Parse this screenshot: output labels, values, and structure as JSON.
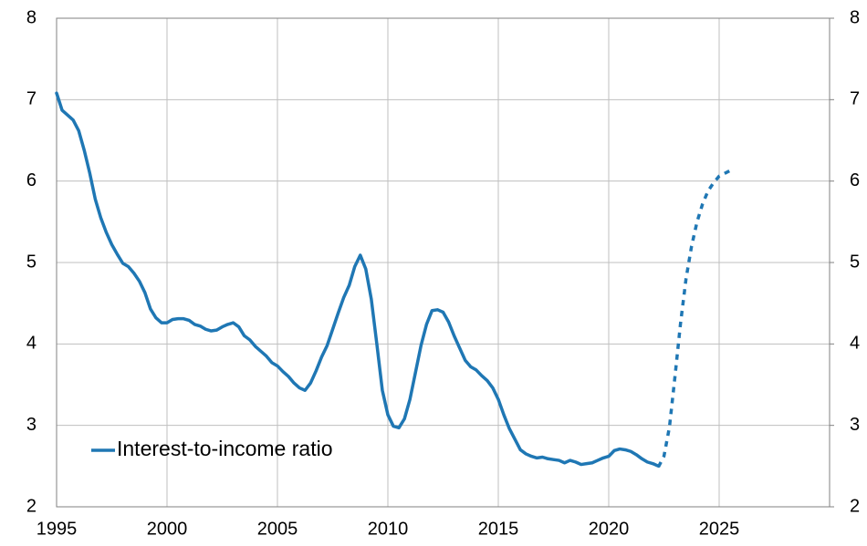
{
  "chart_data": {
    "type": "line",
    "xlim": [
      1995,
      2030
    ],
    "xticks": [
      1995,
      2000,
      2005,
      2010,
      2015,
      2020,
      2025
    ],
    "ylim": [
      2,
      8
    ],
    "yticks": [
      2,
      3,
      4,
      5,
      6,
      7,
      8
    ],
    "y2lim": [
      2,
      8
    ],
    "y2ticks": [
      2,
      3,
      4,
      5,
      6,
      7,
      8
    ],
    "grid": true,
    "legend": "lower left",
    "series": [
      {
        "name": "Interest-to-income ratio",
        "color": "#1f77b4",
        "dashed": false,
        "x": [
          1995,
          1995.25,
          1995.75,
          1996,
          1996.25,
          1996.5,
          1996.75,
          1997,
          1997.25,
          1997.5,
          1997.75,
          1998,
          1998.25,
          1998.5,
          1998.75,
          1999,
          1999.25,
          1999.5,
          1999.75,
          2000,
          2000.25,
          2000.5,
          2000.75,
          2001,
          2001.25,
          2001.5,
          2001.75,
          2002,
          2002.25,
          2002.5,
          2002.75,
          2003,
          2003.25,
          2003.5,
          2003.75,
          2004,
          2004.25,
          2004.5,
          2004.75,
          2005,
          2005.25,
          2005.5,
          2005.75,
          2006,
          2006.25,
          2006.5,
          2006.75,
          2007,
          2007.25,
          2007.5,
          2007.75,
          2008,
          2008.25,
          2008.5,
          2008.75,
          2009,
          2009.25,
          2009.5,
          2009.75,
          2010,
          2010.25,
          2010.5,
          2010.75,
          2011,
          2011.25,
          2011.5,
          2011.75,
          2012,
          2012.25,
          2012.5,
          2012.75,
          2013,
          2013.25,
          2013.5,
          2013.75,
          2014,
          2014.25,
          2014.5,
          2014.75,
          2015,
          2015.25,
          2015.5,
          2015.75,
          2016,
          2016.25,
          2016.5,
          2016.75,
          2017,
          2017.25,
          2017.5,
          2017.75,
          2018,
          2018.25,
          2018.5,
          2018.75,
          2019,
          2019.25,
          2019.5,
          2019.75,
          2020,
          2020.25,
          2020.5,
          2020.75,
          2021,
          2021.25,
          2021.5,
          2021.75,
          2022,
          2022.25
        ],
        "values": [
          7.08,
          6.87,
          6.75,
          6.62,
          6.38,
          6.1,
          5.78,
          5.55,
          5.37,
          5.22,
          5.1,
          4.99,
          4.95,
          4.87,
          4.77,
          4.63,
          4.43,
          4.32,
          4.26,
          4.26,
          4.3,
          4.31,
          4.31,
          4.29,
          4.24,
          4.22,
          4.18,
          4.16,
          4.17,
          4.21,
          4.24,
          4.26,
          4.21,
          4.1,
          4.05,
          3.97,
          3.91,
          3.85,
          3.77,
          3.73,
          3.66,
          3.6,
          3.52,
          3.46,
          3.43,
          3.52,
          3.67,
          3.84,
          3.98,
          4.18,
          4.38,
          4.57,
          4.72,
          4.95,
          5.09,
          4.92,
          4.55,
          4.0,
          3.43,
          3.13,
          2.99,
          2.97,
          3.08,
          3.32,
          3.65,
          3.98,
          4.24,
          4.41,
          4.42,
          4.39,
          4.27,
          4.1,
          3.95,
          3.8,
          3.72,
          3.68,
          3.61,
          3.55,
          3.46,
          3.32,
          3.13,
          2.96,
          2.83,
          2.7,
          2.65,
          2.62,
          2.6,
          2.61,
          2.59,
          2.58,
          2.57,
          2.54,
          2.57,
          2.55,
          2.52,
          2.53,
          2.54,
          2.57,
          2.6,
          2.62,
          2.69,
          2.71,
          2.7,
          2.68,
          2.64,
          2.59,
          2.55,
          2.53,
          2.5
        ]
      },
      {
        "color": "#1f77b4",
        "dashed": true,
        "x": [
          2022.25,
          2022.5,
          2022.75,
          2023,
          2023.25,
          2023.5,
          2023.75,
          2024,
          2024.25,
          2024.5,
          2024.75,
          2025,
          2025.5
        ],
        "values": [
          2.49,
          2.62,
          2.98,
          3.6,
          4.25,
          4.8,
          5.2,
          5.5,
          5.72,
          5.88,
          5.98,
          6.06,
          6.13
        ]
      }
    ]
  }
}
